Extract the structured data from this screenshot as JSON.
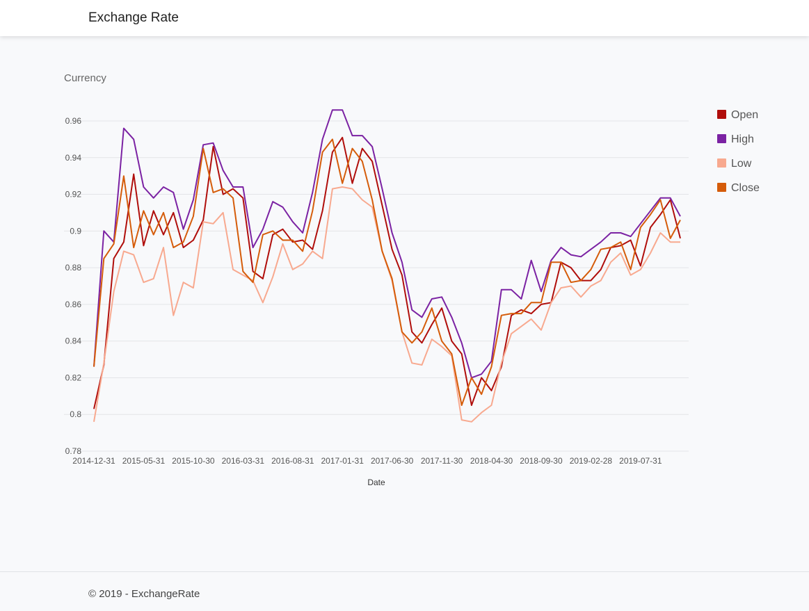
{
  "app": {
    "brand": "Exchange Rate"
  },
  "footer": {
    "text": "© 2019 - ExchangeRate"
  },
  "chart_data": {
    "type": "line",
    "title": "Currency",
    "xlabel": "Date",
    "ylabel": "",
    "ylim": [
      0.78,
      0.97
    ],
    "yticks": [
      0.78,
      0.8,
      0.82,
      0.84,
      0.86,
      0.88,
      0.9,
      0.92,
      0.94,
      0.96
    ],
    "ytick_labels": [
      "0.78",
      "0.8",
      "0.82",
      "0.84",
      "0.86",
      "0.88",
      "0.9",
      "0.92",
      "0.94",
      "0.96"
    ],
    "xtick_labels": [
      "2014-12-31",
      "2015-05-31",
      "2015-10-30",
      "2016-03-31",
      "2016-08-31",
      "2017-01-31",
      "2017-06-30",
      "2017-11-30",
      "2018-04-30",
      "2018-09-30",
      "2019-02-28",
      "2019-07-31"
    ],
    "xtick_every": 5,
    "grid": true,
    "legend": "right",
    "series": [
      {
        "name": "Open",
        "color": "#b00e0b",
        "values": [
          0.803,
          0.827,
          0.885,
          0.894,
          0.931,
          0.892,
          0.911,
          0.898,
          0.91,
          0.891,
          0.895,
          0.906,
          0.946,
          0.92,
          0.923,
          0.918,
          0.878,
          0.874,
          0.898,
          0.901,
          0.894,
          0.895,
          0.89,
          0.911,
          0.943,
          0.951,
          0.926,
          0.945,
          0.938,
          0.914,
          0.89,
          0.876,
          0.845,
          0.839,
          0.849,
          0.858,
          0.84,
          0.833,
          0.805,
          0.82,
          0.813,
          0.826,
          0.854,
          0.857,
          0.855,
          0.86,
          0.861,
          0.883,
          0.88,
          0.873,
          0.873,
          0.879,
          0.891,
          0.892,
          0.895,
          0.881,
          0.902,
          0.909,
          0.917,
          0.896
        ]
      },
      {
        "name": "High",
        "color": "#7b22a3",
        "values": [
          0.826,
          0.9,
          0.894,
          0.956,
          0.95,
          0.924,
          0.918,
          0.924,
          0.921,
          0.901,
          0.917,
          0.947,
          0.948,
          0.933,
          0.924,
          0.924,
          0.891,
          0.901,
          0.916,
          0.913,
          0.905,
          0.899,
          0.921,
          0.95,
          0.966,
          0.966,
          0.952,
          0.952,
          0.946,
          0.923,
          0.899,
          0.883,
          0.857,
          0.853,
          0.863,
          0.864,
          0.853,
          0.839,
          0.82,
          0.822,
          0.829,
          0.868,
          0.868,
          0.863,
          0.884,
          0.867,
          0.884,
          0.891,
          0.887,
          0.886,
          0.89,
          0.894,
          0.899,
          0.899,
          0.897,
          0.904,
          0.911,
          0.918,
          0.918,
          0.908
        ]
      },
      {
        "name": "Low",
        "color": "#f8a98f",
        "values": [
          0.796,
          0.828,
          0.867,
          0.889,
          0.887,
          0.872,
          0.874,
          0.891,
          0.854,
          0.872,
          0.869,
          0.905,
          0.904,
          0.91,
          0.879,
          0.876,
          0.873,
          0.861,
          0.875,
          0.893,
          0.879,
          0.882,
          0.889,
          0.885,
          0.923,
          0.924,
          0.923,
          0.917,
          0.913,
          0.889,
          0.873,
          0.845,
          0.828,
          0.827,
          0.841,
          0.837,
          0.832,
          0.797,
          0.796,
          0.801,
          0.805,
          0.828,
          0.844,
          0.848,
          0.852,
          0.846,
          0.861,
          0.869,
          0.87,
          0.864,
          0.87,
          0.873,
          0.883,
          0.888,
          0.876,
          0.879,
          0.888,
          0.899,
          0.894,
          0.894
        ]
      },
      {
        "name": "Close",
        "color": "#d55c0a",
        "values": [
          0.826,
          0.885,
          0.893,
          0.93,
          0.891,
          0.911,
          0.898,
          0.91,
          0.891,
          0.894,
          0.908,
          0.945,
          0.921,
          0.923,
          0.918,
          0.878,
          0.872,
          0.898,
          0.9,
          0.895,
          0.895,
          0.889,
          0.911,
          0.943,
          0.95,
          0.926,
          0.945,
          0.938,
          0.917,
          0.889,
          0.874,
          0.845,
          0.839,
          0.845,
          0.858,
          0.84,
          0.833,
          0.805,
          0.82,
          0.811,
          0.826,
          0.854,
          0.855,
          0.855,
          0.861,
          0.861,
          0.883,
          0.883,
          0.872,
          0.873,
          0.879,
          0.89,
          0.891,
          0.894,
          0.879,
          0.902,
          0.909,
          0.917,
          0.896,
          0.906
        ]
      }
    ]
  }
}
